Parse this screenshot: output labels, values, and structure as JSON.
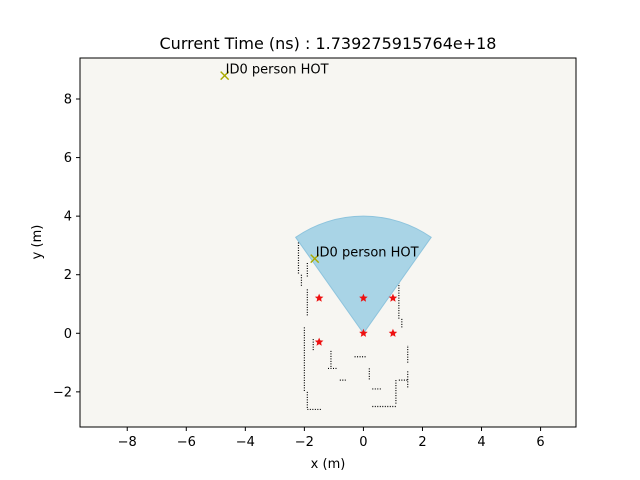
{
  "chart_data": {
    "type": "scatter",
    "title": "Current Time (ns) : 1.739275915764e+18",
    "xlabel": "x (m)",
    "ylabel": "y (m)",
    "xlim": [
      -9.6,
      7.2
    ],
    "ylim": [
      -3.2,
      9.4
    ],
    "xticks": [
      -8,
      -6,
      -4,
      -2,
      0,
      2,
      4,
      6
    ],
    "yticks": [
      -2,
      0,
      2,
      4,
      6,
      8
    ],
    "xtick_labels": [
      "−8",
      "−6",
      "−4",
      "−2",
      "0",
      "2",
      "4",
      "6"
    ],
    "ytick_labels": [
      "−2",
      "0",
      "2",
      "4",
      "6",
      "8"
    ],
    "background_color": "#f7f6f2",
    "grid": false,
    "fov": {
      "origin": [
        0,
        0
      ],
      "radius": 4.0,
      "angle_start_deg": 55,
      "angle_end_deg": 125,
      "fill": "#a9d4e6",
      "edge": "#8ec4dd"
    },
    "stars": {
      "color": "#ee1111",
      "points": [
        [
          -1.5,
          1.2
        ],
        [
          0,
          1.2
        ],
        [
          1.0,
          1.2
        ],
        [
          0,
          0
        ],
        [
          1.0,
          0
        ],
        [
          -1.5,
          -0.3
        ]
      ]
    },
    "detections": [
      {
        "x": -4.7,
        "y": 8.8,
        "label": "ID0 person HOT",
        "color": "#aaaa00"
      },
      {
        "x": -1.65,
        "y": 2.55,
        "label": "ID0 person HOT",
        "color": "#aaaa00"
      }
    ],
    "occupancy_segments": [
      [
        [
          -2.2,
          3.1
        ],
        [
          -0.7,
          3.1
        ]
      ],
      [
        [
          -2.2,
          3.1
        ],
        [
          -2.2,
          2.0
        ]
      ],
      [
        [
          -2.1,
          2.0
        ],
        [
          -2.1,
          1.6
        ]
      ],
      [
        [
          -1.9,
          1.5
        ],
        [
          -1.9,
          0.6
        ]
      ],
      [
        [
          -2.0,
          0.2
        ],
        [
          -2.0,
          -2.0
        ]
      ],
      [
        [
          -1.9,
          -2.0
        ],
        [
          -1.9,
          -2.6
        ]
      ],
      [
        [
          -1.9,
          -2.6
        ],
        [
          -1.4,
          -2.6
        ]
      ],
      [
        [
          -1.1,
          -0.6
        ],
        [
          -1.1,
          -1.2
        ]
      ],
      [
        [
          -1.2,
          -1.2
        ],
        [
          -0.9,
          -1.2
        ]
      ],
      [
        [
          -0.8,
          -1.6
        ],
        [
          -0.6,
          -1.6
        ]
      ],
      [
        [
          -0.3,
          -0.8
        ],
        [
          0.1,
          -0.8
        ]
      ],
      [
        [
          0.2,
          -1.2
        ],
        [
          0.2,
          -1.6
        ]
      ],
      [
        [
          0.3,
          -1.9
        ],
        [
          0.6,
          -1.9
        ]
      ],
      [
        [
          0.3,
          -2.5
        ],
        [
          1.1,
          -2.5
        ]
      ],
      [
        [
          1.1,
          -2.4
        ],
        [
          1.1,
          -1.6
        ]
      ],
      [
        [
          1.2,
          -1.6
        ],
        [
          1.5,
          -1.6
        ]
      ],
      [
        [
          1.5,
          -1.3
        ],
        [
          1.5,
          -1.9
        ]
      ],
      [
        [
          1.5,
          -1.0
        ],
        [
          1.5,
          -0.4
        ]
      ],
      [
        [
          1.3,
          0.2
        ],
        [
          1.3,
          0.5
        ]
      ],
      [
        [
          1.2,
          0.5
        ],
        [
          1.2,
          2.0
        ]
      ],
      [
        [
          -1.0,
          2.8
        ],
        [
          -0.6,
          2.8
        ]
      ],
      [
        [
          -1.1,
          2.4
        ],
        [
          -0.8,
          2.4
        ]
      ],
      [
        [
          -1.9,
          2.4
        ],
        [
          -1.9,
          1.9
        ]
      ],
      [
        [
          -1.7,
          -0.2
        ],
        [
          -1.7,
          -0.6
        ]
      ]
    ]
  }
}
